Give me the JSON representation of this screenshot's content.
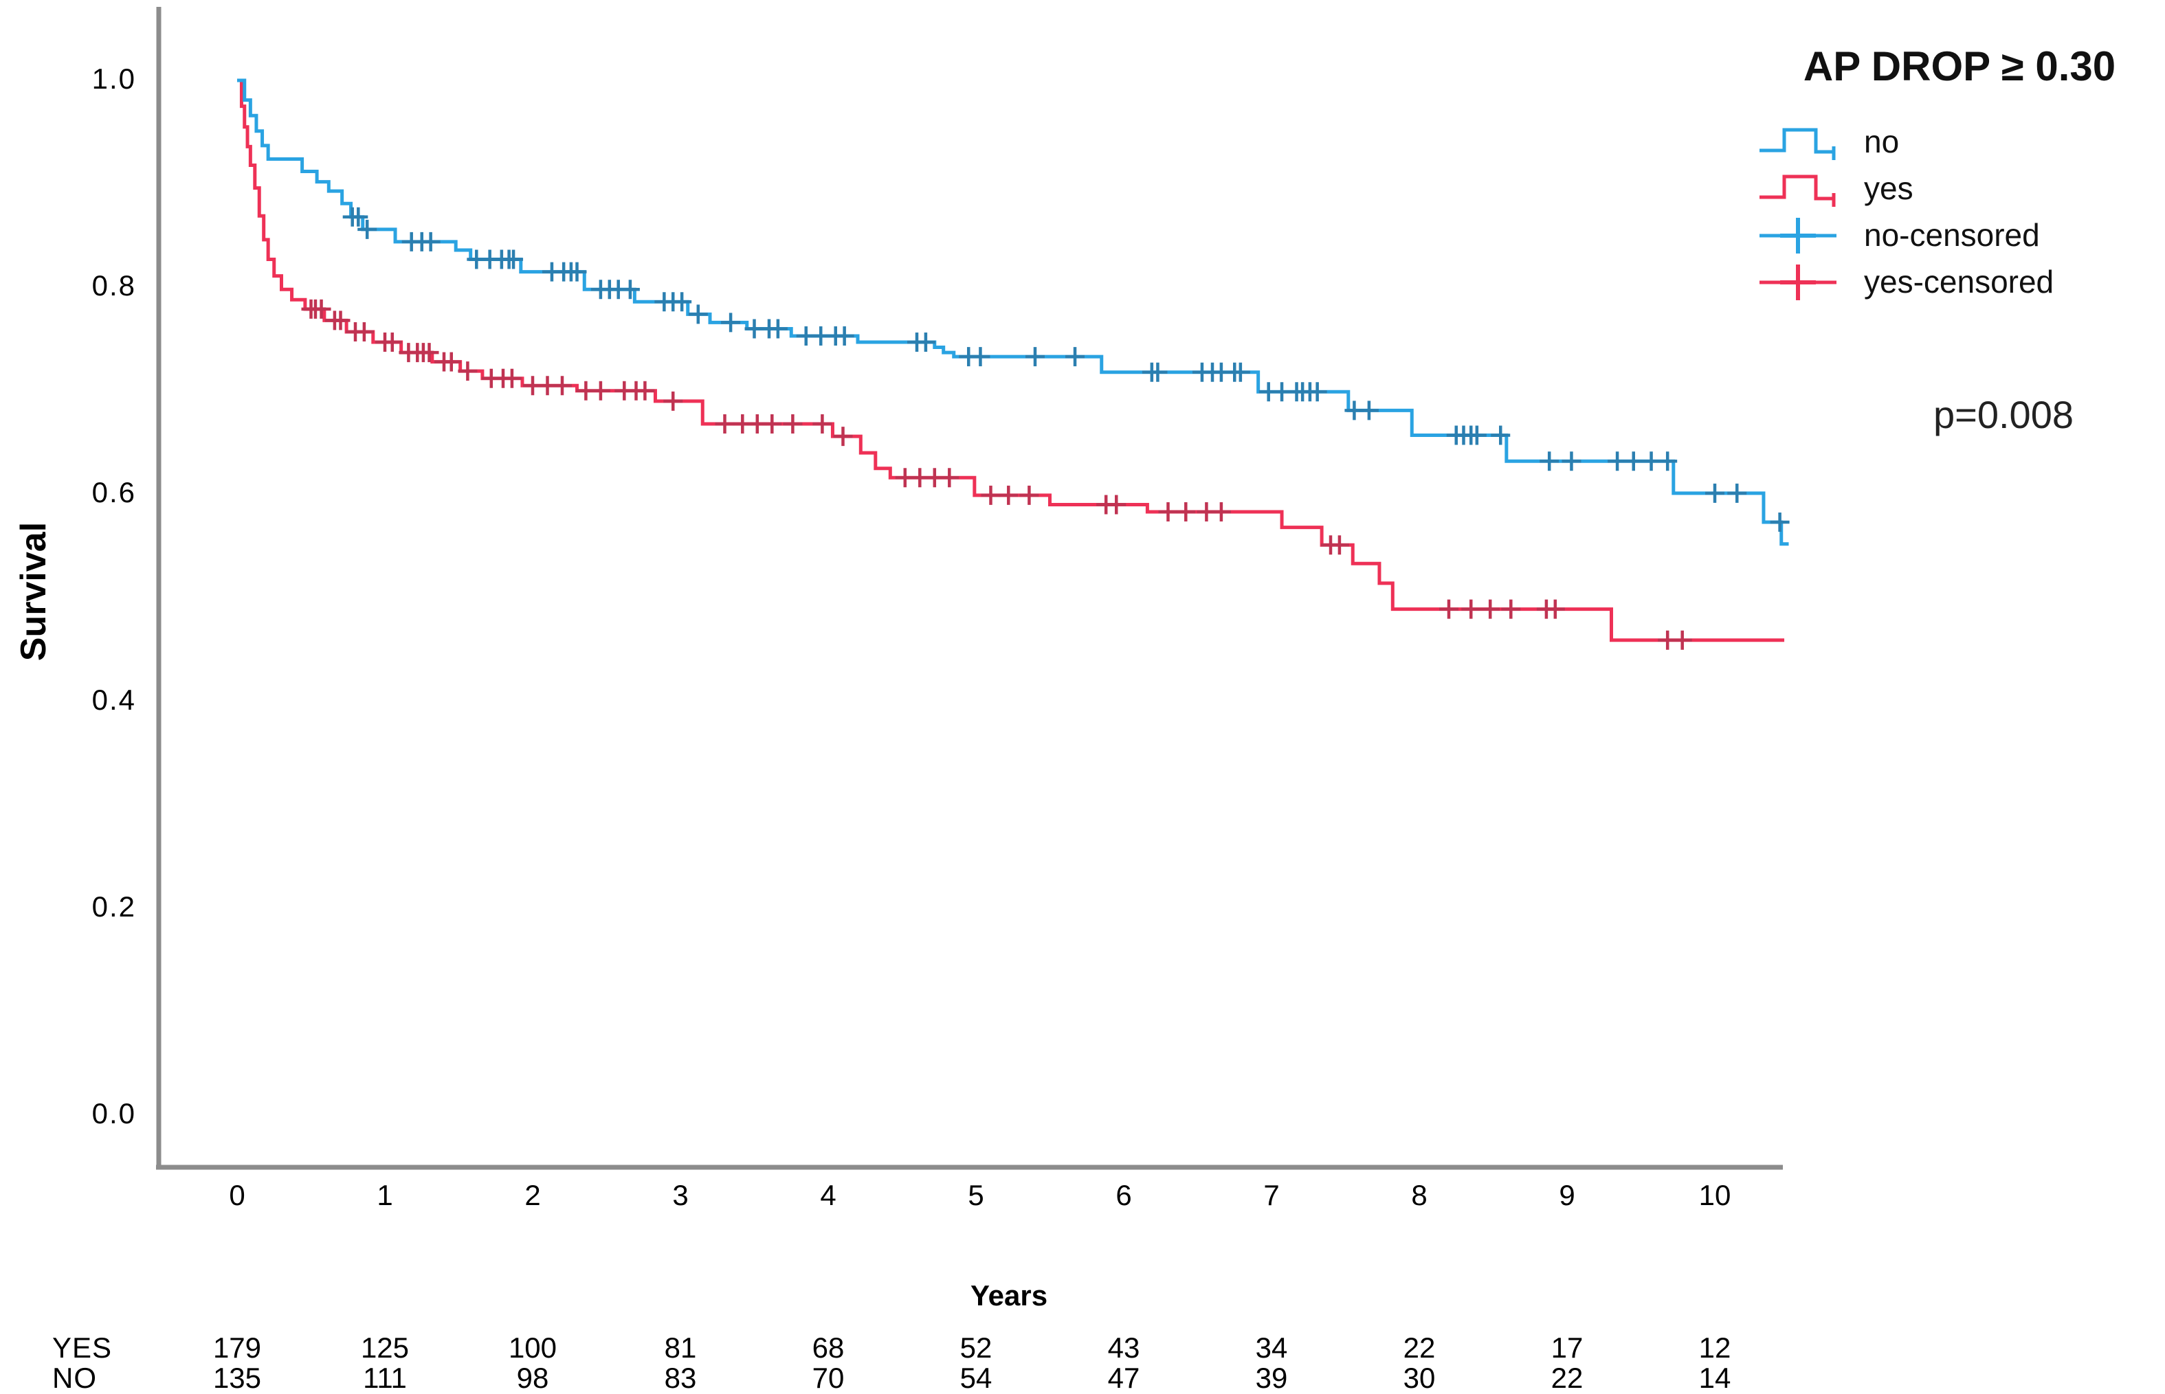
{
  "chart_data": {
    "type": "line",
    "subtype": "kaplan-meier-step-plot",
    "title": "AP DROP ≥ 0.30",
    "p_value_label": "p=0.008",
    "xlabel": "Years",
    "ylabel": "Survival",
    "x_ticks": [
      "0",
      "1",
      "2",
      "3",
      "4",
      "5",
      "6",
      "7",
      "8",
      "9",
      "10"
    ],
    "y_ticks": [
      "0.0",
      "0.2",
      "0.4",
      "0.6",
      "0.8",
      "1.0"
    ],
    "xlim": [
      -0.53,
      10.6
    ],
    "ylim": [
      -0.05,
      1.04
    ],
    "grid": false,
    "legend_position": "top-right",
    "axis_color": "#8c8c8c",
    "text_color": "#000000",
    "series": [
      {
        "name": "no",
        "color": "#2aa3e2",
        "censor_color": "#2b7fb0",
        "end_t": 10.5,
        "steps": [
          [
            0,
            1.0
          ],
          [
            0.05,
            0.981
          ],
          [
            0.09,
            0.966
          ],
          [
            0.13,
            0.951
          ],
          [
            0.17,
            0.937
          ],
          [
            0.21,
            0.924
          ],
          [
            0.44,
            0.912
          ],
          [
            0.54,
            0.902
          ],
          [
            0.62,
            0.893
          ],
          [
            0.71,
            0.881
          ],
          [
            0.77,
            0.868
          ],
          [
            0.85,
            0.856
          ],
          [
            1.07,
            0.844
          ],
          [
            1.48,
            0.836
          ],
          [
            1.58,
            0.827
          ],
          [
            1.92,
            0.815
          ],
          [
            2.35,
            0.798
          ],
          [
            2.69,
            0.786
          ],
          [
            3.05,
            0.774
          ],
          [
            3.2,
            0.766
          ],
          [
            3.45,
            0.76
          ],
          [
            3.75,
            0.753
          ],
          [
            4.2,
            0.747
          ],
          [
            4.72,
            0.742
          ],
          [
            4.78,
            0.737
          ],
          [
            4.85,
            0.733
          ],
          [
            5.85,
            0.718
          ],
          [
            6.91,
            0.699
          ],
          [
            7.52,
            0.681
          ],
          [
            7.95,
            0.657
          ],
          [
            8.59,
            0.632
          ],
          [
            9.72,
            0.601
          ],
          [
            10.33,
            0.573
          ],
          [
            10.45,
            0.552
          ]
        ],
        "censors": [
          0.78,
          0.82,
          0.88,
          1.18,
          1.25,
          1.31,
          1.62,
          1.71,
          1.79,
          1.84,
          1.87,
          2.13,
          2.21,
          2.26,
          2.3,
          2.46,
          2.52,
          2.58,
          2.66,
          2.89,
          2.95,
          3.01,
          3.12,
          3.34,
          3.5,
          3.6,
          3.66,
          3.85,
          3.95,
          4.05,
          4.11,
          4.6,
          4.66,
          4.95,
          5.03,
          5.4,
          5.67,
          6.19,
          6.23,
          6.53,
          6.6,
          6.66,
          6.75,
          6.79,
          6.98,
          7.07,
          7.17,
          7.21,
          7.26,
          7.31,
          7.56,
          7.66,
          8.25,
          8.3,
          8.35,
          8.39,
          8.55,
          8.88,
          9.03,
          9.34,
          9.45,
          9.57,
          9.68,
          10.0,
          10.15,
          10.44
        ]
      },
      {
        "name": "yes",
        "color": "#ee3156",
        "censor_color": "#c03352",
        "end_t": 10.47,
        "steps": [
          [
            0,
            1.0
          ],
          [
            0.03,
            0.975
          ],
          [
            0.05,
            0.955
          ],
          [
            0.07,
            0.936
          ],
          [
            0.09,
            0.918
          ],
          [
            0.12,
            0.896
          ],
          [
            0.15,
            0.869
          ],
          [
            0.18,
            0.846
          ],
          [
            0.21,
            0.827
          ],
          [
            0.25,
            0.811
          ],
          [
            0.3,
            0.798
          ],
          [
            0.37,
            0.788
          ],
          [
            0.46,
            0.779
          ],
          [
            0.59,
            0.768
          ],
          [
            0.74,
            0.757
          ],
          [
            0.92,
            0.747
          ],
          [
            1.11,
            0.737
          ],
          [
            1.32,
            0.728
          ],
          [
            1.51,
            0.719
          ],
          [
            1.66,
            0.712
          ],
          [
            1.93,
            0.705
          ],
          [
            2.3,
            0.7
          ],
          [
            2.83,
            0.69
          ],
          [
            3.15,
            0.668
          ],
          [
            4.03,
            0.656
          ],
          [
            4.22,
            0.64
          ],
          [
            4.32,
            0.625
          ],
          [
            4.42,
            0.616
          ],
          [
            4.99,
            0.599
          ],
          [
            5.5,
            0.59
          ],
          [
            6.16,
            0.583
          ],
          [
            7.07,
            0.568
          ],
          [
            7.34,
            0.551
          ],
          [
            7.55,
            0.533
          ],
          [
            7.73,
            0.514
          ],
          [
            7.82,
            0.489
          ],
          [
            9.3,
            0.459
          ]
        ],
        "censors": [
          0.5,
          0.53,
          0.57,
          0.66,
          0.7,
          0.8,
          0.86,
          1.0,
          1.05,
          1.16,
          1.22,
          1.26,
          1.3,
          1.4,
          1.45,
          1.56,
          1.72,
          1.8,
          1.86,
          2.0,
          2.1,
          2.2,
          2.36,
          2.46,
          2.62,
          2.7,
          2.76,
          2.95,
          3.3,
          3.42,
          3.52,
          3.62,
          3.76,
          3.96,
          4.1,
          4.52,
          4.62,
          4.72,
          4.82,
          5.1,
          5.22,
          5.36,
          5.88,
          5.95,
          6.3,
          6.42,
          6.56,
          6.66,
          7.4,
          7.46,
          8.2,
          8.35,
          8.48,
          8.62,
          8.86,
          8.92,
          9.68,
          9.78
        ]
      }
    ],
    "legend": {
      "title": "AP DROP ≥ 0.30",
      "items": [
        {
          "label": "no",
          "type": "step-line",
          "series": "no"
        },
        {
          "label": "yes",
          "type": "step-line",
          "series": "yes"
        },
        {
          "label": "no-censored",
          "type": "plus-marker",
          "series": "no"
        },
        {
          "label": "yes-censored",
          "type": "plus-marker",
          "series": "yes"
        }
      ]
    },
    "risk_table": {
      "rows": [
        {
          "label": "YES",
          "values": [
            "179",
            "125",
            "100",
            "81",
            "68",
            "52",
            "43",
            "34",
            "22",
            "17",
            "12"
          ]
        },
        {
          "label": "NO",
          "values": [
            "135",
            "111",
            "98",
            "83",
            "70",
            "54",
            "47",
            "39",
            "30",
            "22",
            "14"
          ]
        }
      ]
    }
  }
}
